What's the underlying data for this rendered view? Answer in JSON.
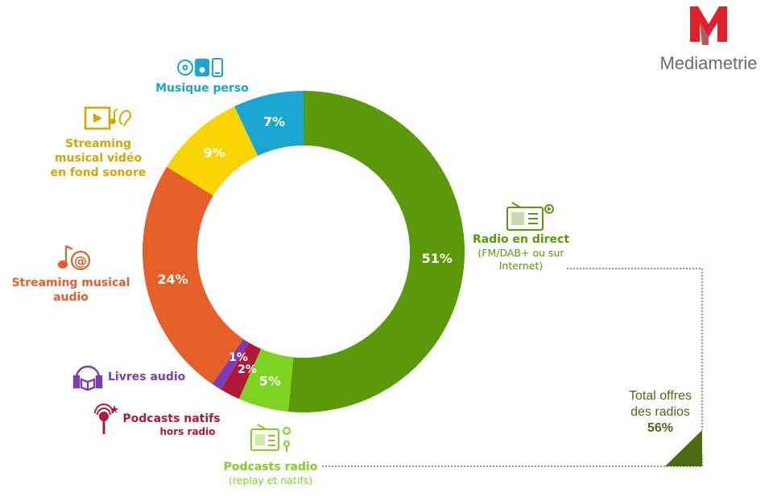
{
  "brand": {
    "name": "Mediametrie",
    "logo_color": "#e0212b"
  },
  "chart_data": {
    "type": "donut",
    "slices": [
      {
        "label": "Radio en direct",
        "sublabel": "(FM/DAB+ ou sur Internet)",
        "value": 51,
        "display": "51%",
        "color": "#5a9a08"
      },
      {
        "label": "Podcasts radio",
        "sublabel": "(replay et natifs)",
        "value": 5,
        "display": "5%",
        "color": "#7ed321"
      },
      {
        "label": "Podcasts natifs",
        "sublabel": "hors radio",
        "value": 2,
        "display": "2%",
        "color": "#b0183a"
      },
      {
        "label": "Livres audio",
        "sublabel": "",
        "value": 1,
        "display": "1%",
        "color": "#7a3eb0"
      },
      {
        "label": "Streaming musical audio",
        "sublabel": "",
        "value": 24,
        "display": "24%",
        "color": "#e65f28"
      },
      {
        "label": "Streaming musical vidéo en fond sonore",
        "sublabel": "",
        "value": 9,
        "display": "9%",
        "color": "#fad400"
      },
      {
        "label": "Musique perso",
        "sublabel": "",
        "value": 7,
        "display": "7%",
        "color": "#1aa6d0"
      }
    ],
    "start_angle_deg": 0,
    "direction": "clockwise"
  },
  "labels": {
    "radio_direct_title": "Radio en direct",
    "radio_direct_sub1": "(FM/DAB+ ou sur",
    "radio_direct_sub2": "Internet)",
    "podcasts_radio_title": "Podcasts radio",
    "podcasts_radio_sub": "(replay et natifs)",
    "podcasts_natifs_title": "Podcasts natifs",
    "podcasts_natifs_sub": "hors radio",
    "livres_audio_title": "Livres audio",
    "streaming_audio_line1": "Streaming musical",
    "streaming_audio_line2": "audio",
    "streaming_video_line1": "Streaming",
    "streaming_video_line2": "musical vidéo",
    "streaming_video_line3": "en fond sonore",
    "musique_perso_title": "Musique perso"
  },
  "total": {
    "line1": "Total offres",
    "line2": "des radios",
    "value": "56%",
    "color": "#4a6a14"
  },
  "icons": [
    "radio-icon",
    "podcast-radio-icon",
    "microphone-icon",
    "headphones-book-icon",
    "music-note-at-icon",
    "video-play-ear-icon",
    "cd-player-phone-icon"
  ]
}
